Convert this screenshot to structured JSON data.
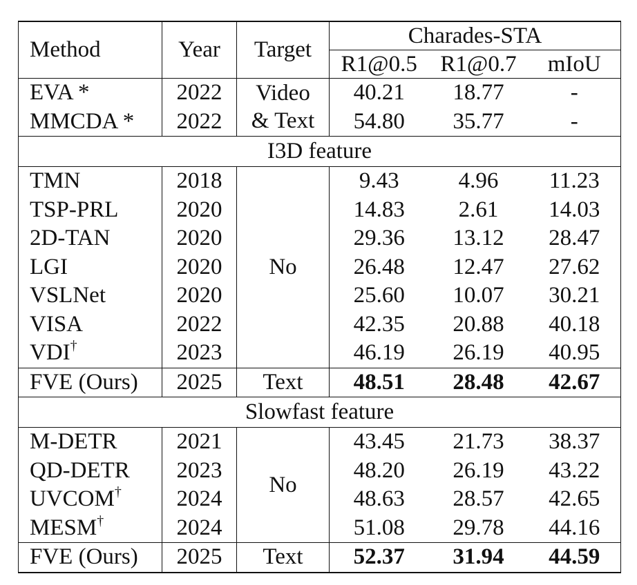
{
  "header": {
    "method": "Method",
    "year": "Year",
    "target": "Target",
    "dataset": "Charades-STA",
    "metrics": [
      "R1@0.5",
      "R1@0.7",
      "mIoU"
    ]
  },
  "group1": {
    "rows": [
      {
        "method": "EVA *",
        "year": "2022",
        "r5": "40.21",
        "r7": "18.77",
        "miou": "-"
      },
      {
        "method": "MMCDA *",
        "year": "2022",
        "r5": "54.80",
        "r7": "35.77",
        "miou": "-"
      }
    ],
    "target_line1": "Video",
    "target_line2": "& Text"
  },
  "section_i3d": {
    "title": "I3D feature",
    "rows": [
      {
        "method": "TMN",
        "dagger": "",
        "year": "2018",
        "r5": "9.43",
        "r7": "4.96",
        "miou": "11.23"
      },
      {
        "method": "TSP-PRL",
        "dagger": "",
        "year": "2020",
        "r5": "14.83",
        "r7": "2.61",
        "miou": "14.03"
      },
      {
        "method": "2D-TAN",
        "dagger": "",
        "year": "2020",
        "r5": "29.36",
        "r7": "13.12",
        "miou": "28.47"
      },
      {
        "method": "LGI",
        "dagger": "",
        "year": "2020",
        "r5": "26.48",
        "r7": "12.47",
        "miou": "27.62"
      },
      {
        "method": "VSLNet",
        "dagger": "",
        "year": "2020",
        "r5": "25.60",
        "r7": "10.07",
        "miou": "30.21"
      },
      {
        "method": "VISA",
        "dagger": "",
        "year": "2022",
        "r5": "42.35",
        "r7": "20.88",
        "miou": "40.18"
      },
      {
        "method": "VDI",
        "dagger": "†",
        "year": "2023",
        "r5": "46.19",
        "r7": "26.19",
        "miou": "40.95"
      }
    ],
    "target": "No",
    "ours": {
      "method": "FVE (Ours)",
      "year": "2025",
      "target": "Text",
      "r5": "48.51",
      "r7": "28.48",
      "miou": "42.67"
    }
  },
  "section_slowfast": {
    "title": "Slowfast feature",
    "rows": [
      {
        "method": "M-DETR",
        "dagger": "",
        "year": "2021",
        "r5": "43.45",
        "r7": "21.73",
        "miou": "38.37"
      },
      {
        "method": "QD-DETR",
        "dagger": "",
        "year": "2023",
        "r5": "48.20",
        "r7": "26.19",
        "miou": "43.22"
      },
      {
        "method": "UVCOM",
        "dagger": "†",
        "year": "2024",
        "r5": "48.63",
        "r7": "28.57",
        "miou": "42.65"
      },
      {
        "method": "MESM",
        "dagger": "†",
        "year": "2024",
        "r5": "51.08",
        "r7": "29.78",
        "miou": "44.16"
      }
    ],
    "target": "No",
    "ours": {
      "method": "FVE (Ours)",
      "year": "2025",
      "target": "Text",
      "r5": "52.37",
      "r7": "31.94",
      "miou": "44.59"
    }
  }
}
